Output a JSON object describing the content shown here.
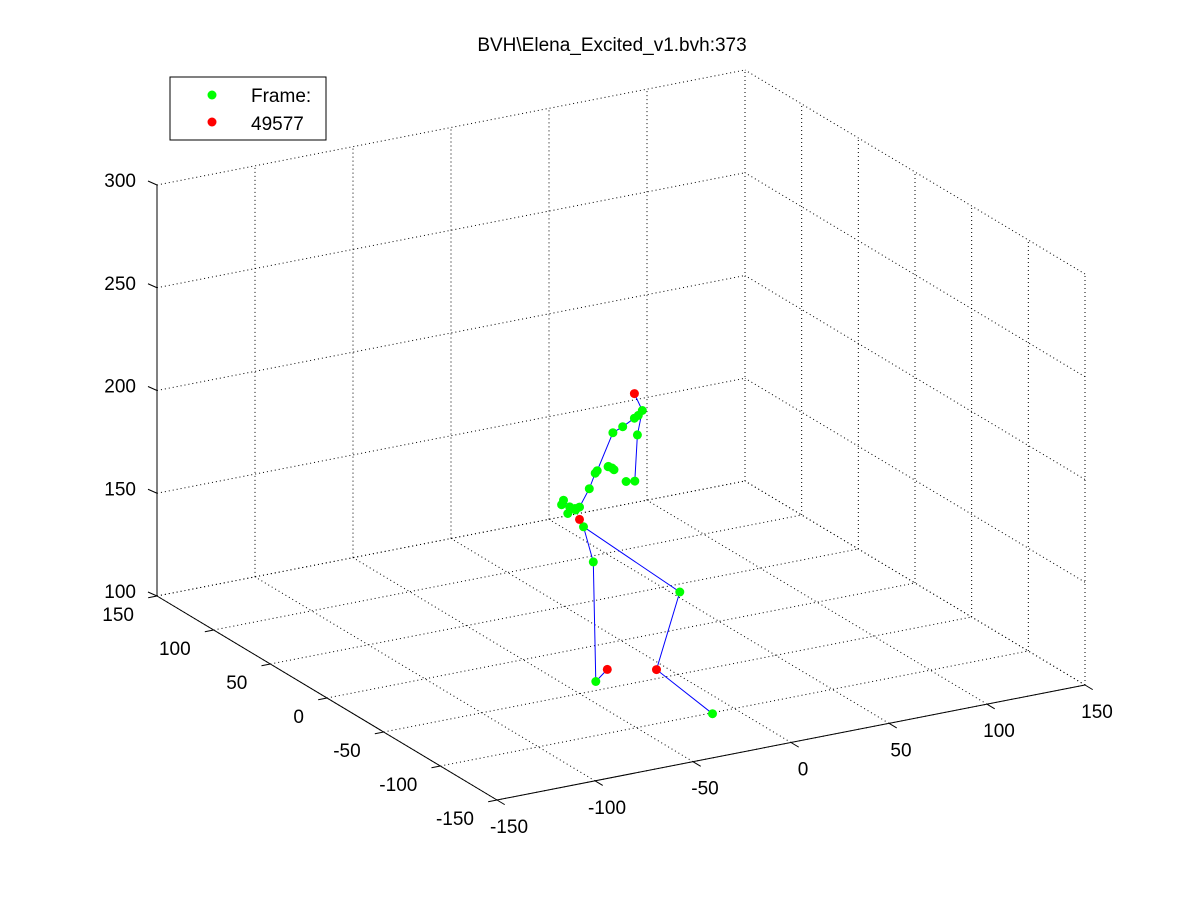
{
  "chart_data": {
    "type": "scatter",
    "title": "BVH\\Elena_Excited_v1.bvh:373",
    "xlabel": "",
    "ylabel": "",
    "zlabel": "",
    "grid": true,
    "legend_position": "top-left",
    "xlim": [
      -150,
      150
    ],
    "ylim": [
      -150,
      150
    ],
    "zlim": [
      100,
      300
    ],
    "x_ticks": [
      "-150",
      "-100",
      "-50",
      "0",
      "50",
      "100",
      "150"
    ],
    "y_ticks": [
      "-150",
      "-100",
      "-50",
      "0",
      "50",
      "100",
      "150"
    ],
    "z_ticks": [
      "100",
      "150",
      "200",
      "250",
      "300"
    ],
    "legend": [
      {
        "label": "Frame:",
        "color": "#00ff00"
      },
      {
        "label": "49577",
        "color": "#ff0000"
      }
    ],
    "series": [
      {
        "color": "#00ff00",
        "points": [
          [
            12,
            2,
            209
          ],
          [
            10,
            2,
            207
          ],
          [
            8,
            2,
            206
          ],
          [
            2,
            2,
            203
          ],
          [
            -3,
            2,
            201
          ],
          [
            13,
            8,
            195
          ],
          [
            14,
            12,
            171
          ],
          [
            13,
            18,
            169
          ],
          [
            -11,
            2,
            184
          ],
          [
            -12,
            2,
            183
          ],
          [
            -15,
            2,
            176
          ],
          [
            8,
            20,
            175
          ],
          [
            7,
            20,
            176
          ],
          [
            5,
            20,
            177
          ],
          [
            4,
            18,
            178
          ],
          [
            -20,
            2,
            168
          ],
          [
            -22,
            2,
            167
          ],
          [
            -25,
            2,
            169
          ],
          [
            -27,
            4,
            172
          ],
          [
            -28,
            4,
            170
          ],
          [
            -20,
            6,
            166
          ],
          [
            -26,
            2,
            166
          ],
          [
            -18,
            2,
            158
          ],
          [
            -13,
            2,
            140
          ],
          [
            -36,
            -40,
            100
          ],
          [
            30,
            0,
            118
          ],
          [
            12,
            -60,
            82
          ]
        ]
      },
      {
        "color": "#ff0000",
        "points": [
          [
            8,
            2,
            218
          ],
          [
            -20,
            2,
            162
          ],
          [
            -33,
            -45,
            107
          ],
          [
            -5,
            -40,
            100
          ]
        ]
      }
    ],
    "bones": [
      [
        [
          -3,
          2,
          201
        ],
        [
          2,
          2,
          203
        ],
        [
          8,
          2,
          206
        ],
        [
          10,
          2,
          207
        ],
        [
          12,
          2,
          209
        ]
      ],
      [
        [
          12,
          2,
          209
        ],
        [
          8,
          2,
          218
        ]
      ],
      [
        [
          12,
          2,
          209
        ],
        [
          13,
          8,
          195
        ],
        [
          14,
          12,
          171
        ],
        [
          13,
          18,
          169
        ]
      ],
      [
        [
          -3,
          2,
          201
        ],
        [
          -11,
          2,
          184
        ],
        [
          -12,
          2,
          183
        ],
        [
          -15,
          2,
          176
        ],
        [
          -20,
          2,
          168
        ],
        [
          -22,
          2,
          167
        ]
      ],
      [
        [
          -22,
          2,
          167
        ],
        [
          -25,
          2,
          169
        ],
        [
          -27,
          4,
          172
        ]
      ],
      [
        [
          -20,
          2,
          162
        ],
        [
          -18,
          2,
          158
        ],
        [
          -13,
          2,
          140
        ],
        [
          -36,
          -40,
          100
        ],
        [
          -33,
          -45,
          107
        ]
      ],
      [
        [
          -18,
          2,
          158
        ],
        [
          30,
          0,
          118
        ],
        [
          -5,
          -40,
          100
        ],
        [
          12,
          -60,
          82
        ]
      ]
    ]
  }
}
